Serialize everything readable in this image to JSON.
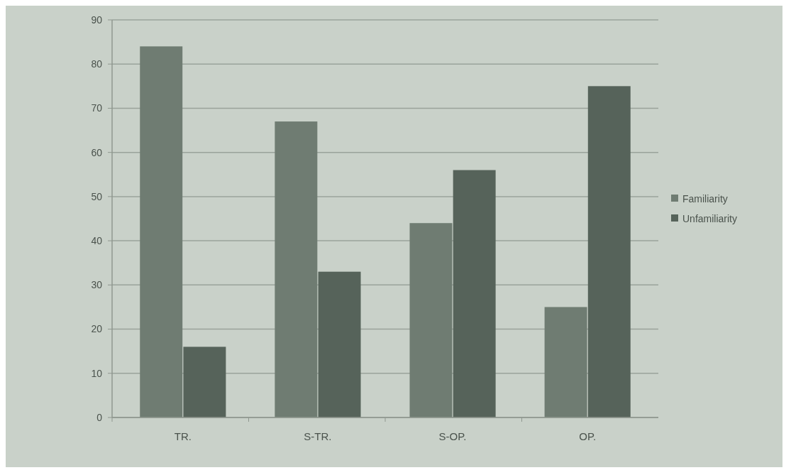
{
  "chart_data": {
    "type": "bar",
    "categories": [
      "TR.",
      "S-TR.",
      "S-OP.",
      "OP."
    ],
    "series": [
      {
        "name": "Familiarity",
        "color": "#6f7c72",
        "values": [
          84,
          67,
          44,
          25
        ]
      },
      {
        "name": "Unfamiliarity",
        "color": "#56635a",
        "values": [
          16,
          33,
          56,
          75
        ]
      }
    ],
    "ylim": [
      0,
      90
    ],
    "yticks": [
      0,
      10,
      20,
      30,
      40,
      50,
      60,
      70,
      80,
      90
    ],
    "grid": "y",
    "legend": "right"
  }
}
